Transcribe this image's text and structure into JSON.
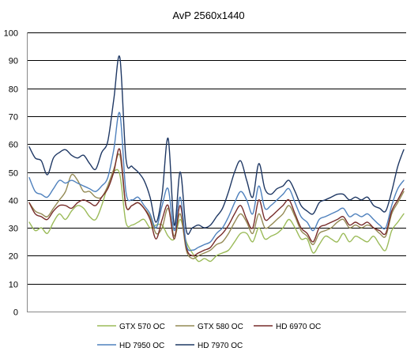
{
  "chart_data": {
    "type": "line",
    "title": "AvP 2560x1440",
    "xlabel": "",
    "ylabel": "",
    "ylim": [
      0,
      100
    ],
    "yticks": [
      0,
      10,
      20,
      30,
      40,
      50,
      60,
      70,
      80,
      90,
      100
    ],
    "grid": true,
    "legend_position": "bottom",
    "series": [
      {
        "name": "GTX 570 OC",
        "color": "#9bbb59",
        "values": [
          32,
          29,
          30,
          28,
          32,
          35,
          33,
          36,
          38,
          37,
          34,
          33,
          38,
          45,
          50,
          49,
          32,
          31,
          32,
          33,
          30,
          31,
          31,
          27,
          26,
          33,
          25,
          21,
          18,
          19,
          18,
          20,
          21,
          22,
          25,
          28,
          28,
          25,
          30,
          26,
          27,
          28,
          30,
          33,
          30,
          26,
          26,
          21,
          24,
          27,
          26,
          25,
          28,
          25,
          27,
          26,
          25,
          27,
          24,
          22,
          29,
          32,
          35
        ]
      },
      {
        "name": "GTX 580 OC",
        "color": "#948a54",
        "values": [
          39,
          36,
          35,
          34,
          37,
          40,
          43,
          49,
          47,
          43,
          43,
          41,
          41,
          45,
          51,
          56,
          38,
          38,
          39,
          37,
          34,
          28,
          30,
          37,
          27,
          35,
          22,
          19,
          20,
          21,
          22,
          24,
          25,
          28,
          32,
          35,
          32,
          28,
          35,
          30,
          31,
          33,
          35,
          38,
          34,
          29,
          27,
          24,
          28,
          29,
          30,
          32,
          33,
          30,
          31,
          30,
          31,
          30,
          28,
          27,
          35,
          39,
          43
        ]
      },
      {
        "name": "HD 6970 OC",
        "color": "#772c2a",
        "values": [
          39,
          35,
          34,
          33,
          36,
          38,
          38,
          37,
          39,
          40,
          39,
          38,
          41,
          44,
          50,
          58,
          38,
          38,
          39,
          37,
          33,
          26,
          33,
          38,
          26,
          38,
          23,
          20,
          21,
          22,
          23,
          26,
          28,
          31,
          35,
          38,
          33,
          30,
          40,
          33,
          34,
          36,
          38,
          40,
          35,
          30,
          28,
          25,
          30,
          31,
          32,
          33,
          34,
          31,
          32,
          31,
          32,
          30,
          29,
          28,
          36,
          40,
          44
        ]
      },
      {
        "name": "HD 7950 OC",
        "color": "#4f81bd",
        "values": [
          48,
          43,
          42,
          41,
          44,
          47,
          46,
          47,
          46,
          45,
          44,
          43,
          45,
          48,
          58,
          71,
          43,
          40,
          41,
          38,
          35,
          30,
          38,
          44,
          29,
          41,
          24,
          22,
          23,
          24,
          25,
          28,
          30,
          34,
          39,
          43,
          40,
          35,
          45,
          37,
          38,
          40,
          42,
          44,
          39,
          34,
          32,
          29,
          33,
          34,
          35,
          36,
          37,
          34,
          35,
          34,
          35,
          33,
          31,
          30,
          38,
          44,
          47
        ]
      },
      {
        "name": "HD 7970 OC",
        "color": "#1f3864",
        "values": [
          59,
          55,
          54,
          49,
          55,
          57,
          58,
          56,
          55,
          56,
          53,
          51,
          57,
          61,
          76,
          91,
          55,
          52,
          50,
          47,
          41,
          32,
          42,
          62,
          31,
          50,
          29,
          30,
          31,
          30,
          31,
          34,
          37,
          43,
          50,
          54,
          47,
          41,
          53,
          44,
          42,
          44,
          45,
          47,
          43,
          38,
          36,
          35,
          39,
          40,
          41,
          42,
          42,
          40,
          41,
          40,
          41,
          38,
          37,
          36,
          43,
          52,
          58
        ]
      }
    ]
  }
}
